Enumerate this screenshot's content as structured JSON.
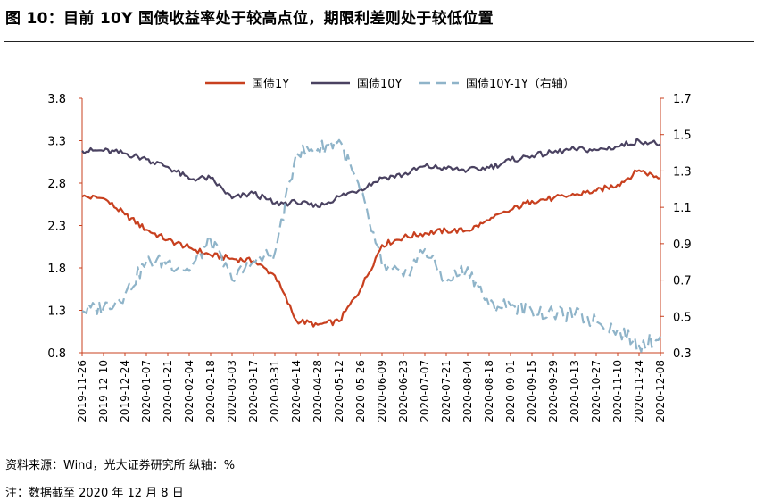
{
  "figure": {
    "title": "图 10：目前 10Y 国债收益率处于较高点位，期限利差则处于较低位置",
    "source": "资料来源：Wind，光大证券研究所 纵轴：%",
    "note": "注：数据截至 2020 年 12 月 8 日"
  },
  "chart_data": {
    "type": "line",
    "x": [
      "2019-11-26",
      "2019-12-10",
      "2019-12-24",
      "2020-01-07",
      "2020-01-21",
      "2020-02-04",
      "2020-02-18",
      "2020-03-03",
      "2020-03-17",
      "2020-03-31",
      "2020-04-14",
      "2020-04-28",
      "2020-05-12",
      "2020-05-26",
      "2020-06-09",
      "2020-06-23",
      "2020-07-07",
      "2020-07-21",
      "2020-08-04",
      "2020-08-18",
      "2020-09-01",
      "2020-09-15",
      "2020-09-29",
      "2020-10-13",
      "2020-10-27",
      "2020-11-10",
      "2020-11-24",
      "2020-12-08"
    ],
    "series": [
      {
        "name": "国债1Y",
        "axis": "left",
        "color": "#c8401f",
        "dash": "solid",
        "values": [
          2.64,
          2.62,
          2.43,
          2.25,
          2.13,
          2.04,
          1.95,
          1.91,
          1.88,
          1.71,
          1.18,
          1.13,
          1.17,
          1.55,
          2.07,
          2.16,
          2.21,
          2.24,
          2.24,
          2.36,
          2.48,
          2.59,
          2.62,
          2.66,
          2.71,
          2.78,
          2.95,
          2.86
        ]
      },
      {
        "name": "国债10Y",
        "axis": "left",
        "color": "#4a4261",
        "dash": "solid",
        "values": [
          3.18,
          3.18,
          3.15,
          3.08,
          2.99,
          2.85,
          2.86,
          2.62,
          2.68,
          2.56,
          2.57,
          2.52,
          2.64,
          2.73,
          2.86,
          2.9,
          3.0,
          2.97,
          2.95,
          2.98,
          3.07,
          3.12,
          3.16,
          3.2,
          3.19,
          3.23,
          3.3,
          3.26
        ]
      },
      {
        "name": "国债10Y-1Y（右轴）",
        "axis": "right",
        "color": "#8fb4c9",
        "dash": "dashed",
        "values": [
          0.53,
          0.55,
          0.62,
          0.8,
          0.8,
          0.75,
          0.92,
          0.7,
          0.8,
          0.85,
          1.4,
          1.42,
          1.47,
          1.18,
          0.78,
          0.72,
          0.87,
          0.69,
          0.77,
          0.56,
          0.56,
          0.53,
          0.51,
          0.51,
          0.47,
          0.43,
          0.34,
          0.39
        ]
      }
    ],
    "y_left": {
      "min": 0.8,
      "max": 3.8,
      "ticks": [
        "0.8",
        "1.3",
        "1.8",
        "2.3",
        "2.8",
        "3.3",
        "3.8"
      ]
    },
    "y_right": {
      "min": 0.3,
      "max": 1.7,
      "ticks": [
        "0.3",
        "0.5",
        "0.7",
        "0.9",
        "1.1",
        "1.3",
        "1.5",
        "1.7"
      ]
    },
    "legend": "top",
    "grid": false
  }
}
